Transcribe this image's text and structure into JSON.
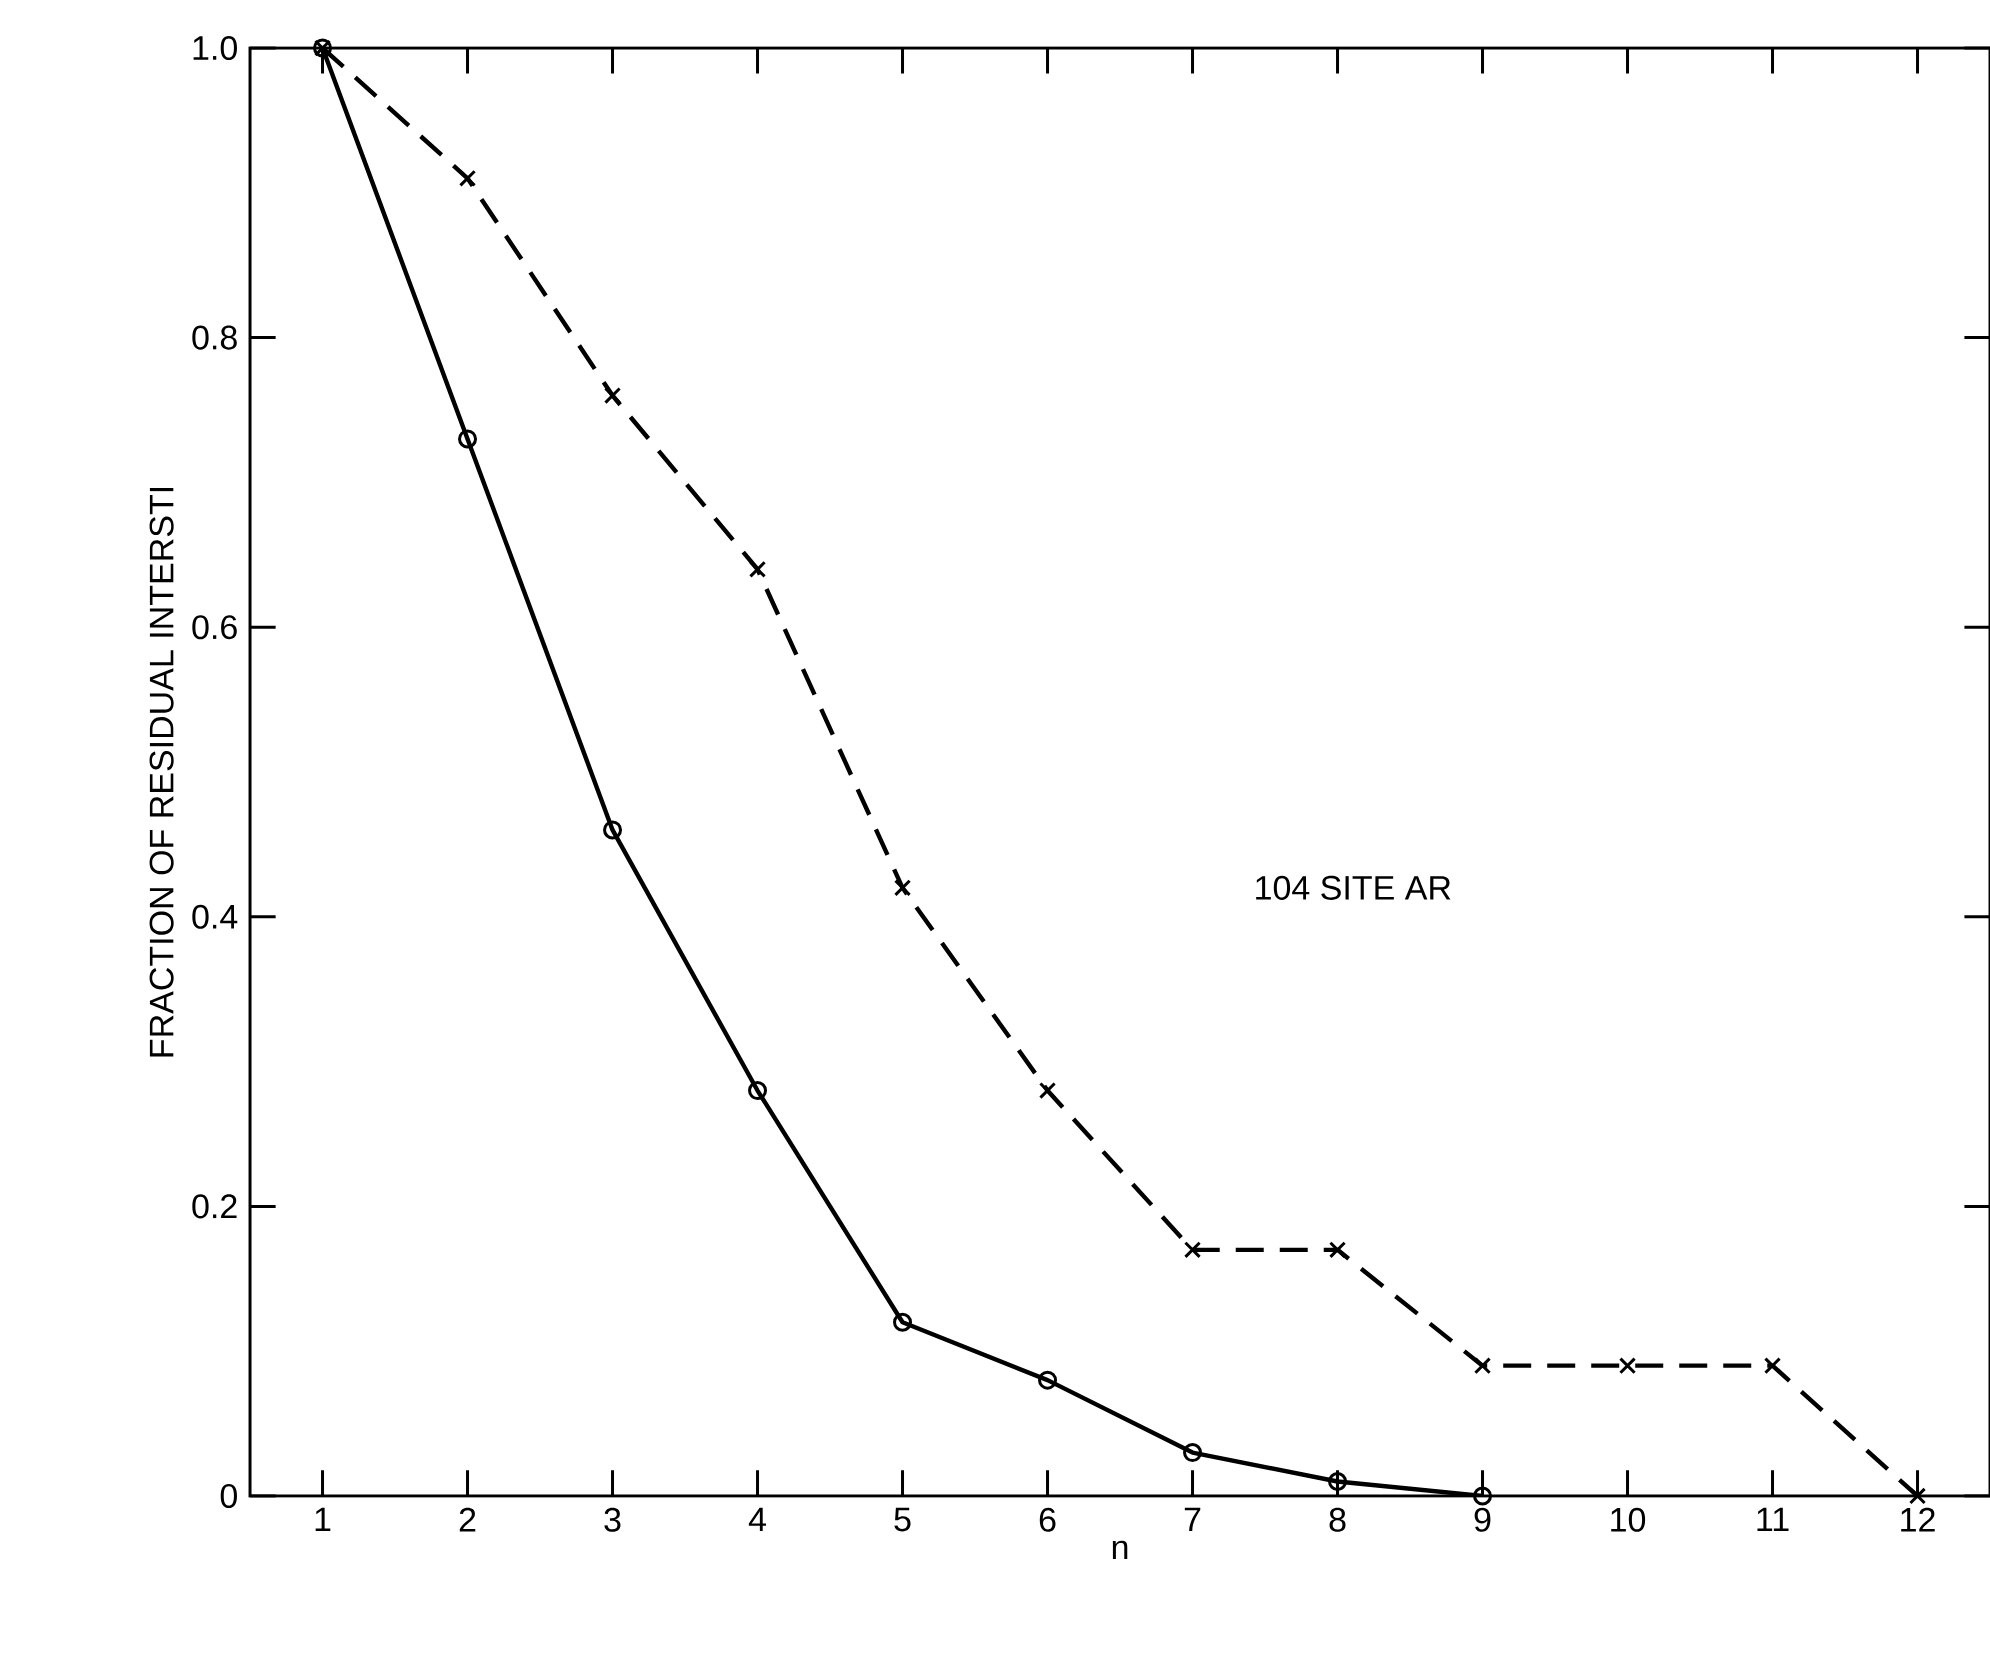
{
  "chart_data": {
    "type": "line",
    "xlabel": "n",
    "ylabel": "FRACTION OF RESIDUAL INTERSTI",
    "annotations": [
      "104 SITE AR"
    ],
    "x": [
      1,
      2,
      3,
      4,
      5,
      6,
      7,
      8,
      9,
      10,
      11,
      12
    ],
    "series": [
      {
        "color": "#000000",
        "marker": "circle",
        "line_style": "solid",
        "values": [
          1.0,
          0.73,
          0.46,
          0.28,
          0.12,
          0.08,
          0.03,
          0.01,
          0,
          null,
          null,
          null
        ]
      },
      {
        "color": "#000000",
        "marker": "cross",
        "line_style": "dashed",
        "values": [
          1.0,
          0.91,
          0.76,
          0.64,
          0.42,
          0.28,
          0.17,
          0.17,
          0.09,
          0.09,
          0.09,
          0
        ]
      }
    ],
    "xlim": [
      0.5,
      12.5
    ],
    "ylim": [
      0,
      1.0
    ],
    "xticks": [
      1,
      2,
      3,
      4,
      5,
      6,
      7,
      8,
      9,
      10,
      11,
      12
    ],
    "yticks": [
      0,
      {
        "value": 0.2,
        "label": "0.2"
      },
      {
        "value": 0.4,
        "label": "0.4"
      },
      {
        "value": 0.6,
        "label": "0.6"
      },
      {
        "value": 0.8,
        "label": "0.8"
      },
      {
        "value": 1.0,
        "label": "1.0"
      }
    ],
    "grid": false
  }
}
